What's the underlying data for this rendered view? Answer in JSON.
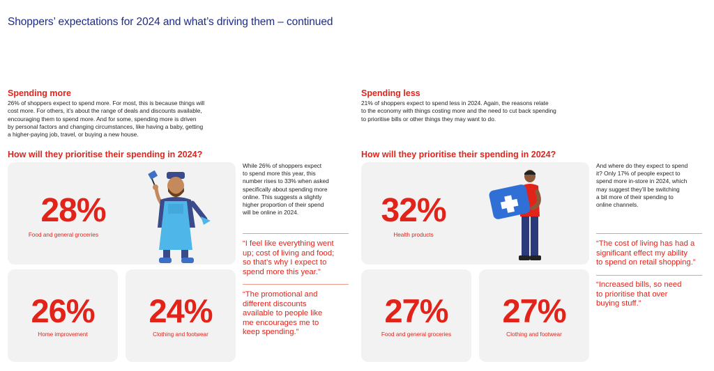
{
  "page": {
    "title": "Shoppers’ expectations for 2024 and what’s driving them – continued"
  },
  "left": {
    "heading": "Spending more",
    "body_lines": [
      "26% of shoppers expect to spend more. For most, this is because things will",
      "cost more. For others, it’s about the range of deals and discounts available,",
      "encouraging them to spend more.  And for some, spending more is driven",
      "by personal factors and changing circumstances, like having a baby, getting",
      "a higher-paying job, travel, or buying a new house."
    ],
    "question": "How will they prioritise their spending in 2024?",
    "stats": [
      {
        "value": "28%",
        "label": "Food and general groceries"
      },
      {
        "value": "26%",
        "label": "Home improvement"
      },
      {
        "value": "24%",
        "label": "Clothing and footwear"
      }
    ],
    "side_lines": [
      "While 26% of shoppers expect",
      "to spend more this year, this",
      "number rises to 33% when asked",
      "specifically about spending more",
      "online. This suggests a slightly",
      "higher proportion of their spend",
      "will be online in 2024."
    ],
    "quotes": [
      [
        "“I feel like everything went",
        "up; cost of living and food;",
        "so that’s why I expect to",
        "spend more this year.”"
      ],
      [
        "“The promotional and",
        "different discounts",
        "available to people like",
        "me encourages me to",
        "keep spending.”"
      ]
    ]
  },
  "right": {
    "heading": "Spending less",
    "body_lines": [
      "21% of shoppers expect to spend less in 2024. Again, the reasons relate",
      "to the economy with things costing more and the need to cut back spending",
      "to prioritise bills or other things they may want to do."
    ],
    "question": "How will they prioritise their spending in 2024?",
    "stats": [
      {
        "value": "32%",
        "label": "Health products"
      },
      {
        "value": "27%",
        "label": "Food and general groceries"
      },
      {
        "value": "27%",
        "label": "Clothing and footwear"
      }
    ],
    "side_lines": [
      "And where do they expect to spend",
      "it?  Only 17% of people expect to",
      "spend more in-store in 2024, which",
      "may suggest they’ll be switching",
      "a bit more of their spending to",
      "online channels."
    ],
    "quotes": [
      [
        "“The cost of living has had a",
        "significant effect my ability",
        "to spend on retail shopping.”"
      ],
      [
        "“Increased bills, so need",
        "to prioritise that over",
        "buying stuff.”"
      ]
    ]
  },
  "colors": {
    "title_blue": "#1b2a8c",
    "accent_red": "#e2231a",
    "card_grey": "#f2f2f2"
  },
  "icons": [
    "chef-shopper-illustration",
    "medical-kit-illustration"
  ]
}
